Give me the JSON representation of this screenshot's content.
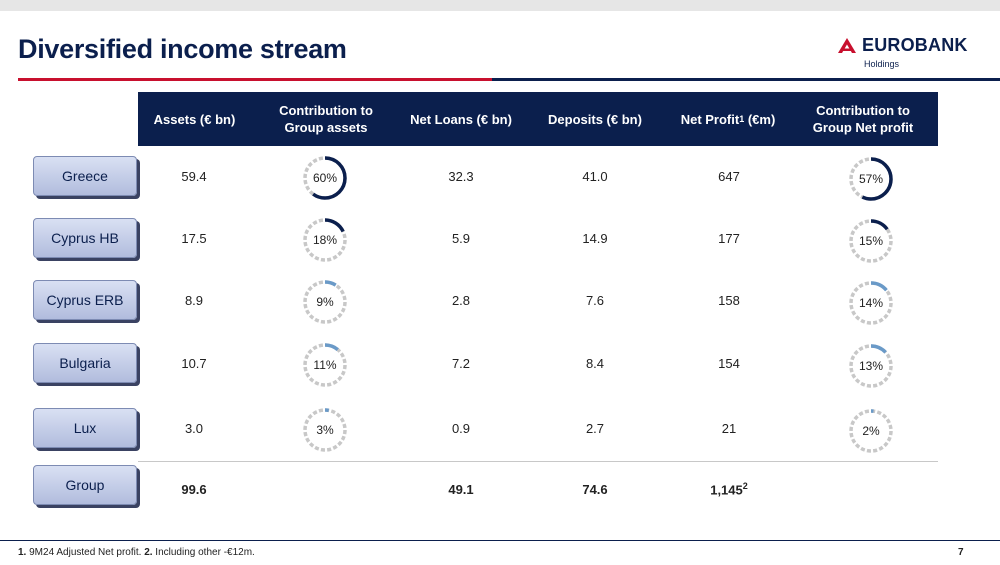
{
  "slide": {
    "title": "Diversified income stream",
    "page_number": "7"
  },
  "logo": {
    "wordmark": "EUROBANK",
    "subtitle": "Holdings"
  },
  "colors": {
    "navy": "#0b1f4d",
    "red": "#c8102e",
    "donut_track": "#c8c8c8",
    "donut_fill_major": "#0b1f4d",
    "donut_fill_minor": "#6a9ac8"
  },
  "table": {
    "headers": {
      "assets": "Assets (€ bn)",
      "contrib_assets": "Contribution to Group  assets",
      "net_loans": "Net Loans (€ bn)",
      "deposits": "Deposits (€ bn)",
      "net_profit": "Net Profit",
      "net_profit_sup": "1",
      "net_profit_unit": " (€m)",
      "contrib_profit": "Contribution to Group Net profit"
    },
    "rows": [
      {
        "name": "Greece",
        "assets": "59.4",
        "contrib_assets": "60%",
        "contrib_assets_value": 60,
        "net_loans": "32.3",
        "deposits": "41.0",
        "net_profit": "647",
        "contrib_profit": "57%",
        "contrib_profit_value": 57
      },
      {
        "name": "Cyprus HB",
        "assets": "17.5",
        "contrib_assets": "18%",
        "contrib_assets_value": 18,
        "net_loans": "5.9",
        "deposits": "14.9",
        "net_profit": "177",
        "contrib_profit": "15%",
        "contrib_profit_value": 15
      },
      {
        "name": "Cyprus ERB",
        "assets": "8.9",
        "contrib_assets": "9%",
        "contrib_assets_value": 9,
        "net_loans": "2.8",
        "deposits": "7.6",
        "net_profit": "158",
        "contrib_profit": "14%",
        "contrib_profit_value": 14
      },
      {
        "name": "Bulgaria",
        "assets": "10.7",
        "contrib_assets": "11%",
        "contrib_assets_value": 11,
        "net_loans": "7.2",
        "deposits": "8.4",
        "net_profit": "154",
        "contrib_profit": "13%",
        "contrib_profit_value": 13
      },
      {
        "name": "Lux",
        "assets": "3.0",
        "contrib_assets": "3%",
        "contrib_assets_value": 3,
        "net_loans": "0.9",
        "deposits": "2.7",
        "net_profit": "21",
        "contrib_profit": "2%",
        "contrib_profit_value": 2
      }
    ],
    "group": {
      "name": "Group",
      "assets": "99.6",
      "net_loans": "49.1",
      "deposits": "74.6",
      "net_profit": "1,145",
      "net_profit_sup": "2"
    }
  },
  "footnotes": {
    "n1_marker": "1.",
    "n1_text": " 9M24 Adjusted Net profit. ",
    "n2_marker": "2.",
    "n2_text": " Including other -€12m."
  }
}
